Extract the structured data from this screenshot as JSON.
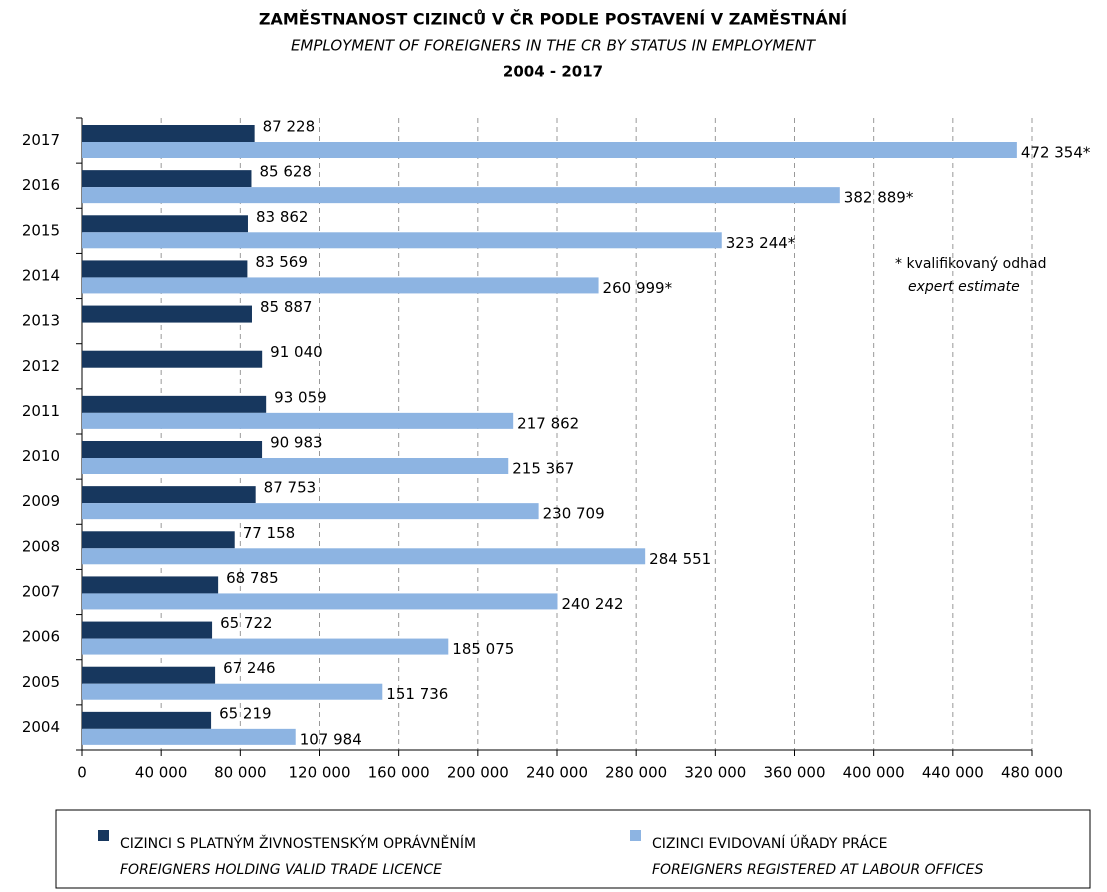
{
  "chart_data": {
    "type": "barh",
    "title": "ZAMĚSTNANOST CIZINCŮ V ČR PODLE POSTAVENÍ V ZAMĚSTNÁNÍ",
    "subtitle": "EMPLOYMENT OF FOREIGNERS IN THE CR BY STATUS IN EMPLOYMENT",
    "period": "2004 - 2017",
    "categories": [
      "2017",
      "2016",
      "2015",
      "2014",
      "2013",
      "2012",
      "2011",
      "2010",
      "2009",
      "2008",
      "2007",
      "2006",
      "2005",
      "2004"
    ],
    "series": [
      {
        "name": "CIZINCI S PLATNÝM ŽIVNOSTENSKÝM OPRÁVNĚNÍM",
        "name_en": "FOREIGNERS HOLDING VALID TRADE LICENCE",
        "color": "#17375e",
        "values": [
          87228,
          85628,
          83862,
          83569,
          85887,
          91040,
          93059,
          90983,
          87753,
          77158,
          68785,
          65722,
          67246,
          65219
        ],
        "value_labels": [
          "87 228",
          "85 628",
          "83 862",
          "83 569",
          "85 887",
          "91 040",
          "93 059",
          "90 983",
          "87 753",
          "77 158",
          "68 785",
          "65 722",
          "67 246",
          "65 219"
        ]
      },
      {
        "name": "CIZINCI EVIDOVANÍ ÚŘADY PRÁCE",
        "name_en": "FOREIGNERS REGISTERED AT LABOUR OFFICES",
        "color": "#8db4e2",
        "values": [
          472354,
          382889,
          323244,
          260999,
          null,
          null,
          217862,
          215367,
          230709,
          284551,
          240242,
          185075,
          151736,
          107984
        ],
        "value_labels": [
          "472 354*",
          "382 889*",
          "323 244*",
          "260 999*",
          null,
          null,
          "217 862",
          "215 367",
          "230 709",
          "284 551",
          "240 242",
          "185 075",
          "151 736",
          "107 984"
        ]
      }
    ],
    "annotations": [
      "* kvalifikovaný odhad",
      "expert estimate"
    ],
    "xlim": [
      0,
      480000
    ],
    "xticks": [
      0,
      {
        "value": 40000,
        "label": "40 000"
      },
      {
        "value": 80000,
        "label": "80 000"
      },
      {
        "value": 120000,
        "label": "120 000"
      },
      {
        "value": 160000,
        "label": "160 000"
      },
      {
        "value": 200000,
        "label": "200 000"
      },
      {
        "value": 240000,
        "label": "240 000"
      },
      {
        "value": 280000,
        "label": "280 000"
      },
      {
        "value": 320000,
        "label": "320 000"
      },
      {
        "value": 360000,
        "label": "360 000"
      },
      {
        "value": 400000,
        "label": "400 000"
      },
      {
        "value": 440000,
        "label": "440 000"
      },
      {
        "value": 480000,
        "label": "480 000"
      }
    ],
    "grid": true
  }
}
